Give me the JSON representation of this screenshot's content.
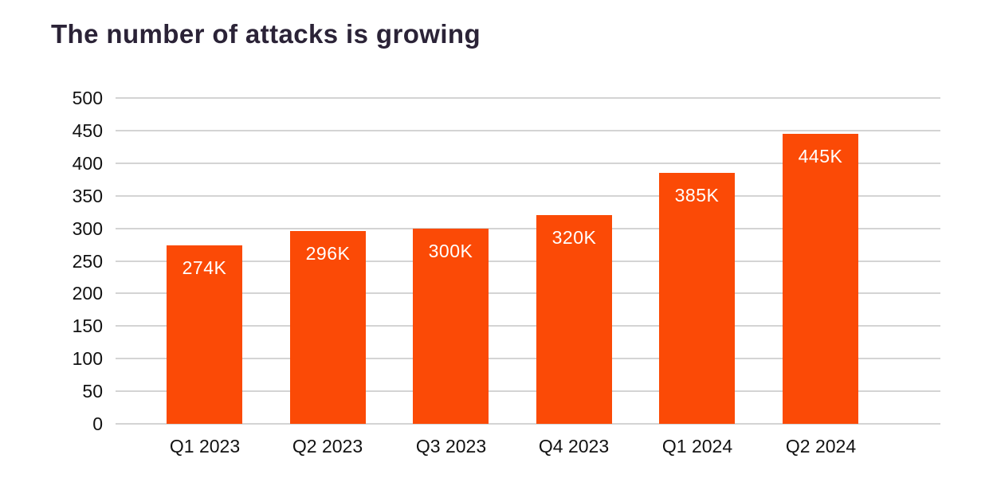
{
  "chart_data": {
    "type": "bar",
    "title": "The number of attacks is growing",
    "categories": [
      "Q1 2023",
      "Q2 2023",
      "Q3 2023",
      "Q4 2023",
      "Q1 2024",
      "Q2 2024"
    ],
    "values": [
      274,
      296,
      300,
      320,
      385,
      445
    ],
    "value_labels": [
      "274K",
      "296K",
      "300K",
      "320K",
      "385K",
      "445K"
    ],
    "xlabel": "",
    "ylabel": "",
    "ylim": [
      0,
      500
    ],
    "yticks": [
      0,
      50,
      100,
      150,
      200,
      250,
      300,
      350,
      400,
      450,
      500
    ],
    "grid": "horizontal",
    "legend": "none",
    "colors": {
      "bar": "#fb4a06",
      "gridline": "#d4d4d4",
      "title": "#2b2337",
      "axis_labels": "#111111",
      "value_labels": "#ffffff",
      "background": "#ffffff"
    }
  }
}
